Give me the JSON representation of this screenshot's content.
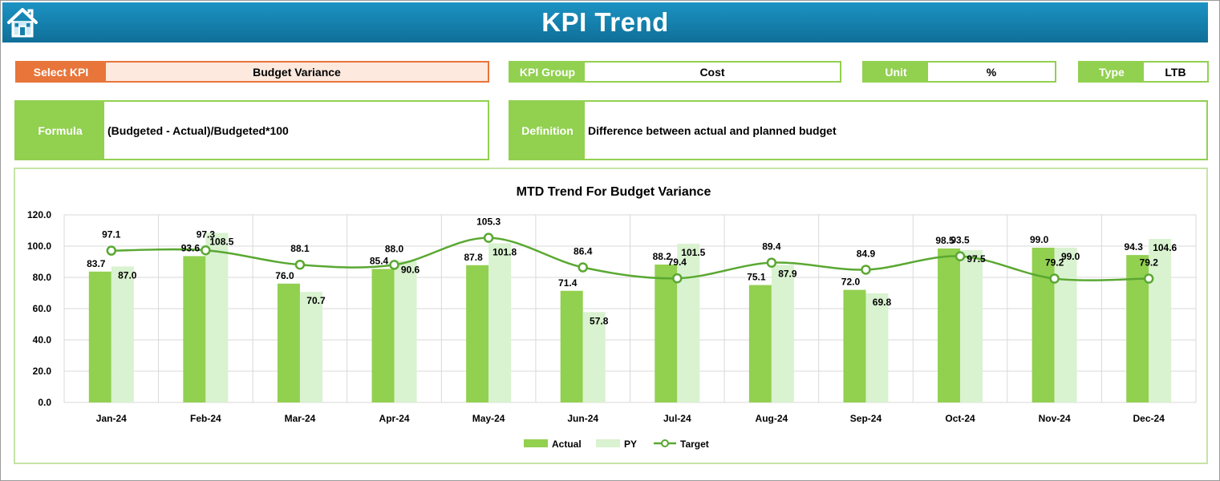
{
  "header": {
    "title": "KPI Trend",
    "home_icon": "home-icon"
  },
  "fields": {
    "select_kpi": {
      "label": "Select KPI",
      "value": "Budget Variance"
    },
    "kpi_group": {
      "label": "KPI Group",
      "value": "Cost"
    },
    "unit": {
      "label": "Unit",
      "value": "%"
    },
    "type": {
      "label": "Type",
      "value": "LTB"
    }
  },
  "formula": {
    "label": "Formula",
    "value": "(Budgeted - Actual)/Budgeted*100"
  },
  "definition": {
    "label": "Definition",
    "value": "Difference between actual and planned budget"
  },
  "colors": {
    "actual": "#92d050",
    "py": "#d9f2d0",
    "target": "#5aa832",
    "header": "#1580ad",
    "select_accent": "#e8753a"
  },
  "chart_data": {
    "type": "bar",
    "title": "MTD Trend For Budget Variance",
    "categories": [
      "Jan-24",
      "Feb-24",
      "Mar-24",
      "Apr-24",
      "May-24",
      "Jun-24",
      "Jul-24",
      "Aug-24",
      "Sep-24",
      "Oct-24",
      "Nov-24",
      "Dec-24"
    ],
    "series": [
      {
        "name": "Actual",
        "kind": "bar",
        "values": [
          83.7,
          93.6,
          76.0,
          85.4,
          87.8,
          71.4,
          88.2,
          75.1,
          72.0,
          98.5,
          99.0,
          94.3
        ]
      },
      {
        "name": "PY",
        "kind": "bar",
        "values": [
          87.0,
          108.5,
          70.7,
          90.6,
          101.8,
          57.8,
          101.5,
          87.9,
          69.8,
          97.5,
          99.0,
          104.6
        ]
      },
      {
        "name": "Target",
        "kind": "line",
        "values": [
          97.1,
          97.3,
          88.1,
          88.0,
          105.3,
          86.4,
          79.4,
          89.4,
          84.9,
          93.5,
          79.2,
          79.2
        ]
      }
    ],
    "yticks": [
      "0.0",
      "20.0",
      "40.0",
      "60.0",
      "80.0",
      "100.0",
      "120.0"
    ],
    "ylim": [
      0,
      120
    ],
    "grid": true,
    "legend": "bottom"
  }
}
